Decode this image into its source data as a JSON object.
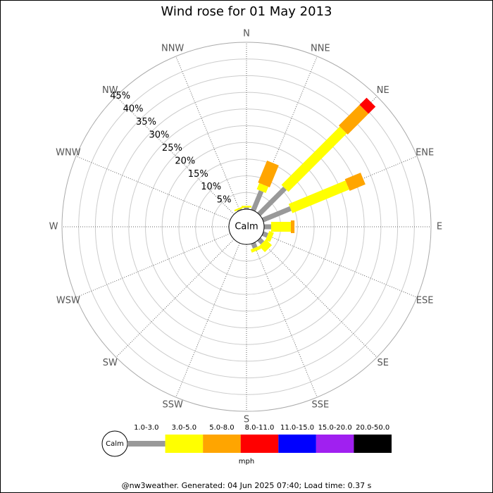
{
  "chart_data": {
    "type": "windrose",
    "title": "Wind rose for 01 May 2013",
    "calm_label": "Calm",
    "categories": [
      "N",
      "NNE",
      "NE",
      "ENE",
      "E",
      "ESE",
      "SE",
      "SSE",
      "S",
      "SSW",
      "SW",
      "WSW",
      "W",
      "WNW",
      "NW",
      "NNW"
    ],
    "ylim": [
      0,
      50
    ],
    "yticks": [
      {
        "value": 5,
        "label": "5%"
      },
      {
        "value": 10,
        "label": "10%"
      },
      {
        "value": 15,
        "label": "15%"
      },
      {
        "value": 20,
        "label": "20%"
      },
      {
        "value": 25,
        "label": "25%"
      },
      {
        "value": 30,
        "label": "30%"
      },
      {
        "value": 35,
        "label": "35%"
      },
      {
        "value": 40,
        "label": "40%"
      },
      {
        "value": 45,
        "label": "45%"
      }
    ],
    "legend_title": "mph",
    "series": [
      {
        "name": "1.0-3.0",
        "color": "#999999",
        "values": [
          0.5,
          6.3,
          11,
          9,
          2.1,
          1.5,
          1.5,
          1.5,
          0,
          0,
          0,
          0,
          0,
          0,
          0,
          0.3
        ]
      },
      {
        "name": "3.0-5.0",
        "color": "#ffff00",
        "values": [
          0.5,
          2,
          24.7,
          18.4,
          5.9,
          1.5,
          2.5,
          1,
          0,
          0,
          0,
          0,
          0,
          0,
          0,
          0.5
        ]
      },
      {
        "name": "5.0-8.0",
        "color": "#ffa500",
        "values": [
          0,
          7.1,
          8.8,
          5.1,
          1.1,
          0,
          0,
          0,
          0,
          0,
          0,
          0,
          0,
          0,
          0,
          0
        ]
      },
      {
        "name": "8.0-11.0",
        "color": "#ff0000",
        "values": [
          0,
          0,
          3,
          0,
          0,
          0,
          0,
          0,
          0,
          0,
          0,
          0,
          0,
          0,
          0,
          0
        ]
      },
      {
        "name": "11.0-15.0",
        "color": "#0000ff",
        "values": [
          0,
          0,
          0,
          0,
          0,
          0,
          0,
          0,
          0,
          0,
          0,
          0,
          0,
          0,
          0,
          0
        ]
      },
      {
        "name": "15.0-20.0",
        "color": "#a020f0",
        "values": [
          0,
          0,
          0,
          0,
          0,
          0,
          0,
          0,
          0,
          0,
          0,
          0,
          0,
          0,
          0,
          0
        ]
      },
      {
        "name": "20.0-50.0",
        "color": "#000000",
        "values": [
          0,
          0,
          0,
          0,
          0,
          0,
          0,
          0,
          0,
          0,
          0,
          0,
          0,
          0,
          0,
          0
        ]
      }
    ],
    "footer": "@nw3weather. Generated: 04 Jun 2025 07:40; Load time: 0.37 s"
  }
}
